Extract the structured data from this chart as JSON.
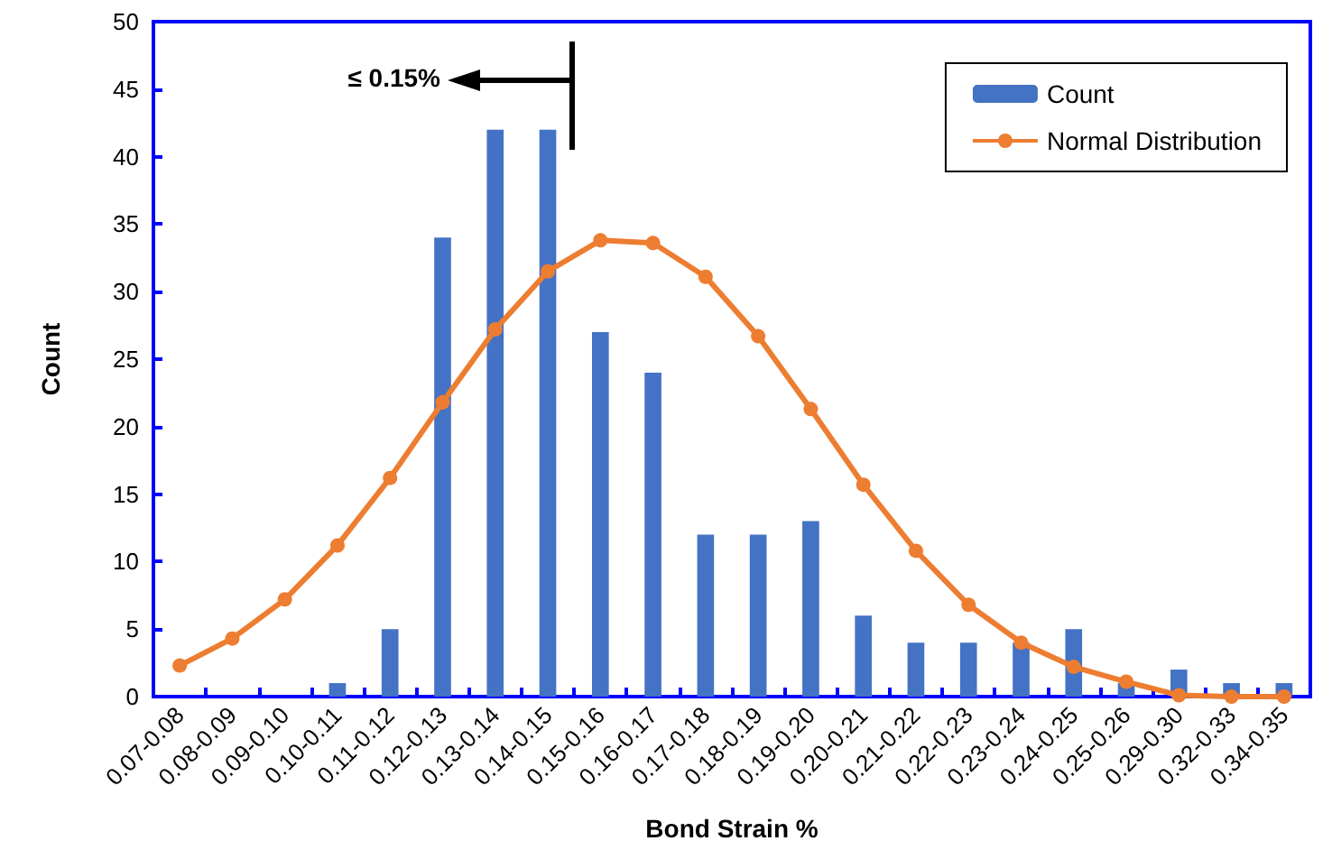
{
  "chart_data": {
    "type": "bar",
    "xlabel": "Bond Strain %",
    "ylabel": "Count",
    "categories": [
      "0.07-0.08",
      "0.08-0.09",
      "0.09-0.10",
      "0.10-0.11",
      "0.11-0.12",
      "0.12-0.13",
      "0.13-0.14",
      "0.14-0.15",
      "0.15-0.16",
      "0.16-0.17",
      "0.17-0.18",
      "0.18-0.19",
      "0.19-0.20",
      "0.20-0.21",
      "0.21-0.22",
      "0.22-0.23",
      "0.23-0.24",
      "0.24-0.25",
      "0.25-0.26",
      "0.29-0.30",
      "0.32-0.33",
      "0.34-0.35"
    ],
    "series": [
      {
        "name": "Count",
        "color": "#4472c4",
        "values": [
          0,
          0,
          0,
          1,
          5,
          34,
          42,
          42,
          27,
          24,
          12,
          12,
          13,
          6,
          4,
          4,
          4,
          5,
          1,
          2,
          1,
          1
        ]
      },
      {
        "name": "Normal Distribution",
        "type": "line",
        "color": "#ed7d31",
        "marker": "circle",
        "values": [
          2.3,
          4.3,
          7.2,
          11.2,
          16.2,
          21.8,
          27.2,
          31.5,
          33.8,
          33.6,
          31.1,
          26.7,
          21.3,
          15.7,
          10.8,
          6.8,
          4.0,
          2.2,
          1.1,
          0.1,
          0,
          0
        ]
      }
    ],
    "ylim": [
      0,
      50
    ],
    "yticks": [
      0,
      5,
      10,
      15,
      20,
      25,
      30,
      35,
      40,
      45,
      50
    ],
    "grid": false,
    "legend": "top right",
    "annotations": [
      "≤ 0.15%"
    ]
  }
}
